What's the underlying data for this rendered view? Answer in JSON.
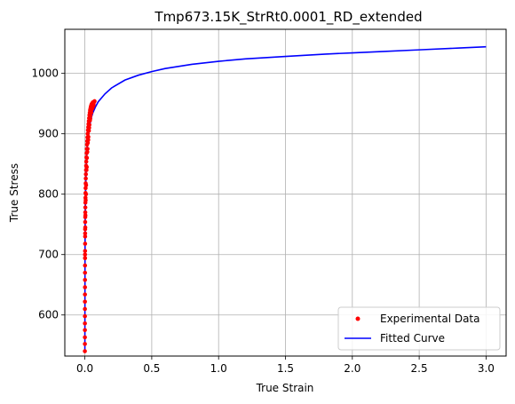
{
  "chart_data": {
    "type": "scatter",
    "title": "Tmp673.15K_StrRt0.0001_RD_extended",
    "xlabel": "True Strain",
    "ylabel": "True Stress",
    "xlim": [
      -0.15,
      3.15
    ],
    "ylim": [
      532,
      1073
    ],
    "xticks": [
      0.0,
      0.5,
      1.0,
      1.5,
      2.0,
      2.5,
      3.0
    ],
    "xtick_labels": [
      "0.0",
      "0.5",
      "1.0",
      "1.5",
      "2.0",
      "2.5",
      "3.0"
    ],
    "yticks": [
      600,
      700,
      800,
      900,
      1000
    ],
    "ytick_labels": [
      "600",
      "700",
      "800",
      "900",
      "1000"
    ],
    "grid": true,
    "legend_position": "lower-right",
    "colors": {
      "experimental": "#ff0000",
      "fitted": "#0000ff"
    },
    "series": [
      {
        "name": "Experimental Data",
        "kind": "scatter",
        "points": [
          [
            0.0,
            540
          ],
          [
            0.0001,
            552
          ],
          [
            0.0001,
            563
          ],
          [
            0.0002,
            575
          ],
          [
            0.0002,
            586
          ],
          [
            0.0003,
            598
          ],
          [
            0.0004,
            610
          ],
          [
            0.0005,
            622
          ],
          [
            0.0006,
            634
          ],
          [
            0.0007,
            646
          ],
          [
            0.0008,
            658
          ],
          [
            0.0009,
            670
          ],
          [
            0.001,
            682
          ],
          [
            0.0012,
            694
          ],
          [
            0.0014,
            706
          ],
          [
            0.0016,
            718
          ],
          [
            0.0018,
            730
          ],
          [
            0.002,
            742
          ],
          [
            0.0023,
            754
          ],
          [
            0.0026,
            762
          ],
          [
            0.003,
            770
          ],
          [
            0.0034,
            778
          ],
          [
            0.0038,
            786
          ],
          [
            0.0043,
            794
          ],
          [
            0.0048,
            802
          ],
          [
            0.0054,
            810
          ],
          [
            0.006,
            818
          ],
          [
            0.0067,
            826
          ],
          [
            0.0075,
            833
          ],
          [
            0.0084,
            840
          ],
          [
            0.0094,
            847
          ],
          [
            0.0105,
            854
          ],
          [
            0.0117,
            861
          ],
          [
            0.013,
            868
          ],
          [
            0.0144,
            875
          ],
          [
            0.0159,
            882
          ],
          [
            0.0175,
            888
          ],
          [
            0.0192,
            894
          ],
          [
            0.021,
            900
          ],
          [
            0.0229,
            906
          ],
          [
            0.0249,
            911
          ],
          [
            0.027,
            916
          ],
          [
            0.0292,
            921
          ],
          [
            0.0315,
            926
          ],
          [
            0.0339,
            931
          ],
          [
            0.0364,
            935
          ],
          [
            0.039,
            939
          ],
          [
            0.0417,
            942
          ],
          [
            0.0445,
            945
          ],
          [
            0.0474,
            947
          ],
          [
            0.0504,
            949
          ],
          [
            0.0535,
            950
          ],
          [
            0.0567,
            951
          ],
          [
            0.06,
            952
          ],
          [
            0.0634,
            952
          ],
          [
            0.0668,
            953
          ],
          [
            0.07,
            953
          ],
          [
            0.0725,
            954
          ],
          [
            0.001,
            700
          ],
          [
            0.002,
            735
          ],
          [
            0.004,
            765
          ],
          [
            0.006,
            790
          ],
          [
            0.009,
            815
          ],
          [
            0.012,
            840
          ],
          [
            0.015,
            860
          ],
          [
            0.018,
            870
          ],
          [
            0.022,
            885
          ],
          [
            0.026,
            895
          ],
          [
            0.03,
            905
          ],
          [
            0.034,
            915
          ],
          [
            0.038,
            922
          ],
          [
            0.042,
            930
          ],
          [
            0.046,
            936
          ],
          [
            0.05,
            940
          ],
          [
            0.055,
            944
          ],
          [
            0.06,
            947
          ],
          [
            0.065,
            949
          ],
          [
            0.003,
            745
          ],
          [
            0.008,
            800
          ],
          [
            0.014,
            845
          ],
          [
            0.02,
            875
          ],
          [
            0.025,
            890
          ],
          [
            0.032,
            910
          ],
          [
            0.04,
            925
          ],
          [
            0.048,
            935
          ],
          [
            0.056,
            942
          ],
          [
            0.064,
            946
          ]
        ]
      },
      {
        "name": "Fitted Curve",
        "kind": "line",
        "points": [
          [
            0.0,
            540
          ],
          [
            0.0005,
            640
          ],
          [
            0.001,
            700
          ],
          [
            0.002,
            750
          ],
          [
            0.004,
            790
          ],
          [
            0.007,
            820
          ],
          [
            0.01,
            845
          ],
          [
            0.015,
            870
          ],
          [
            0.02,
            885
          ],
          [
            0.03,
            905
          ],
          [
            0.04,
            918
          ],
          [
            0.05,
            928
          ],
          [
            0.06,
            935
          ],
          [
            0.08,
            945
          ],
          [
            0.1,
            953
          ],
          [
            0.15,
            966
          ],
          [
            0.2,
            976
          ],
          [
            0.3,
            989
          ],
          [
            0.4,
            997
          ],
          [
            0.5,
            1003
          ],
          [
            0.6,
            1008
          ],
          [
            0.8,
            1015
          ],
          [
            1.0,
            1020
          ],
          [
            1.2,
            1024
          ],
          [
            1.5,
            1028
          ],
          [
            1.8,
            1032
          ],
          [
            2.0,
            1034
          ],
          [
            2.2,
            1036
          ],
          [
            2.5,
            1039
          ],
          [
            2.8,
            1042
          ],
          [
            3.0,
            1044
          ]
        ]
      }
    ]
  }
}
